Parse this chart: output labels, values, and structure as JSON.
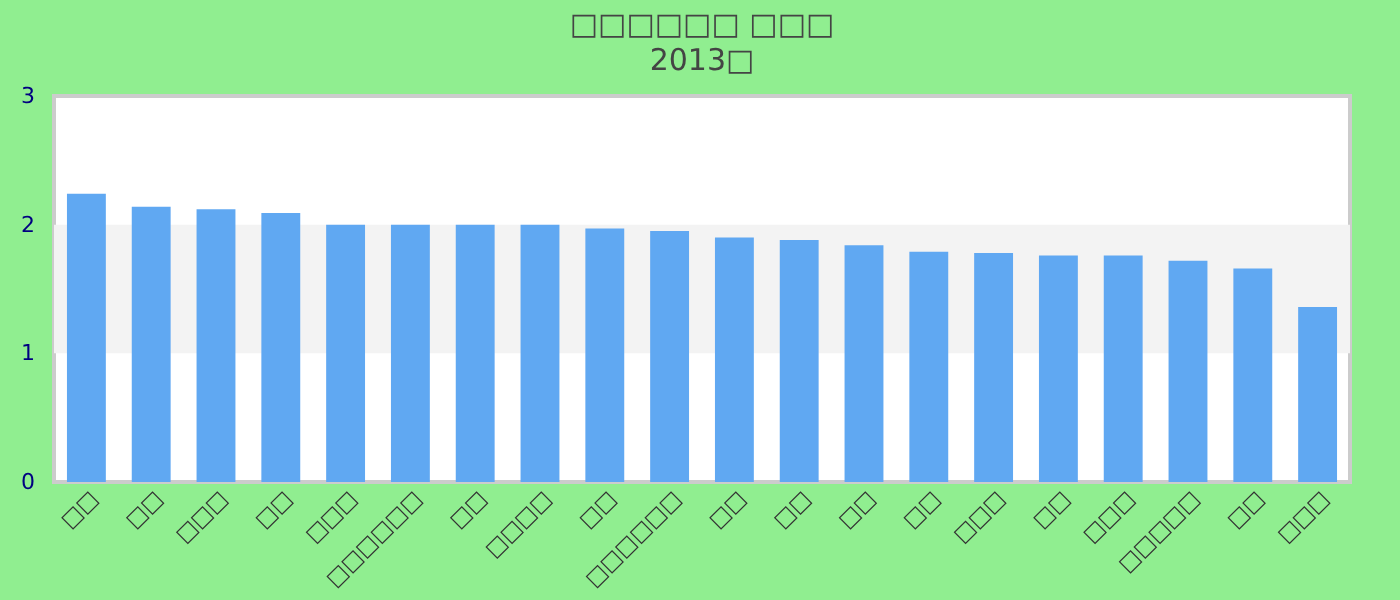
{
  "chart_data": {
    "type": "bar",
    "title": "□□□□□□ □□□",
    "subtitle": "2013□",
    "categories": [
      "□□",
      "□□",
      "□□□",
      "□□",
      "□□□",
      "□□□□□□",
      "□□",
      "□□□□",
      "□□",
      "□□□□□□",
      "□□",
      "□□",
      "□□",
      "□□",
      "□□□",
      "□□",
      "□□□",
      "□□□□□",
      "□□",
      "□□□"
    ],
    "values": [
      2.24,
      2.14,
      2.12,
      2.09,
      2.0,
      2.0,
      2.0,
      2.0,
      1.97,
      1.95,
      1.9,
      1.88,
      1.84,
      1.79,
      1.78,
      1.76,
      1.76,
      1.72,
      1.66,
      1.36
    ],
    "color": "#60a8f2",
    "ylim": [
      0,
      3
    ],
    "yticks": [
      0,
      1,
      2,
      3
    ],
    "grid": false,
    "bands": [
      {
        "axis": "y",
        "from": 1,
        "to": 2,
        "color": "#f3f3f3"
      }
    ]
  }
}
